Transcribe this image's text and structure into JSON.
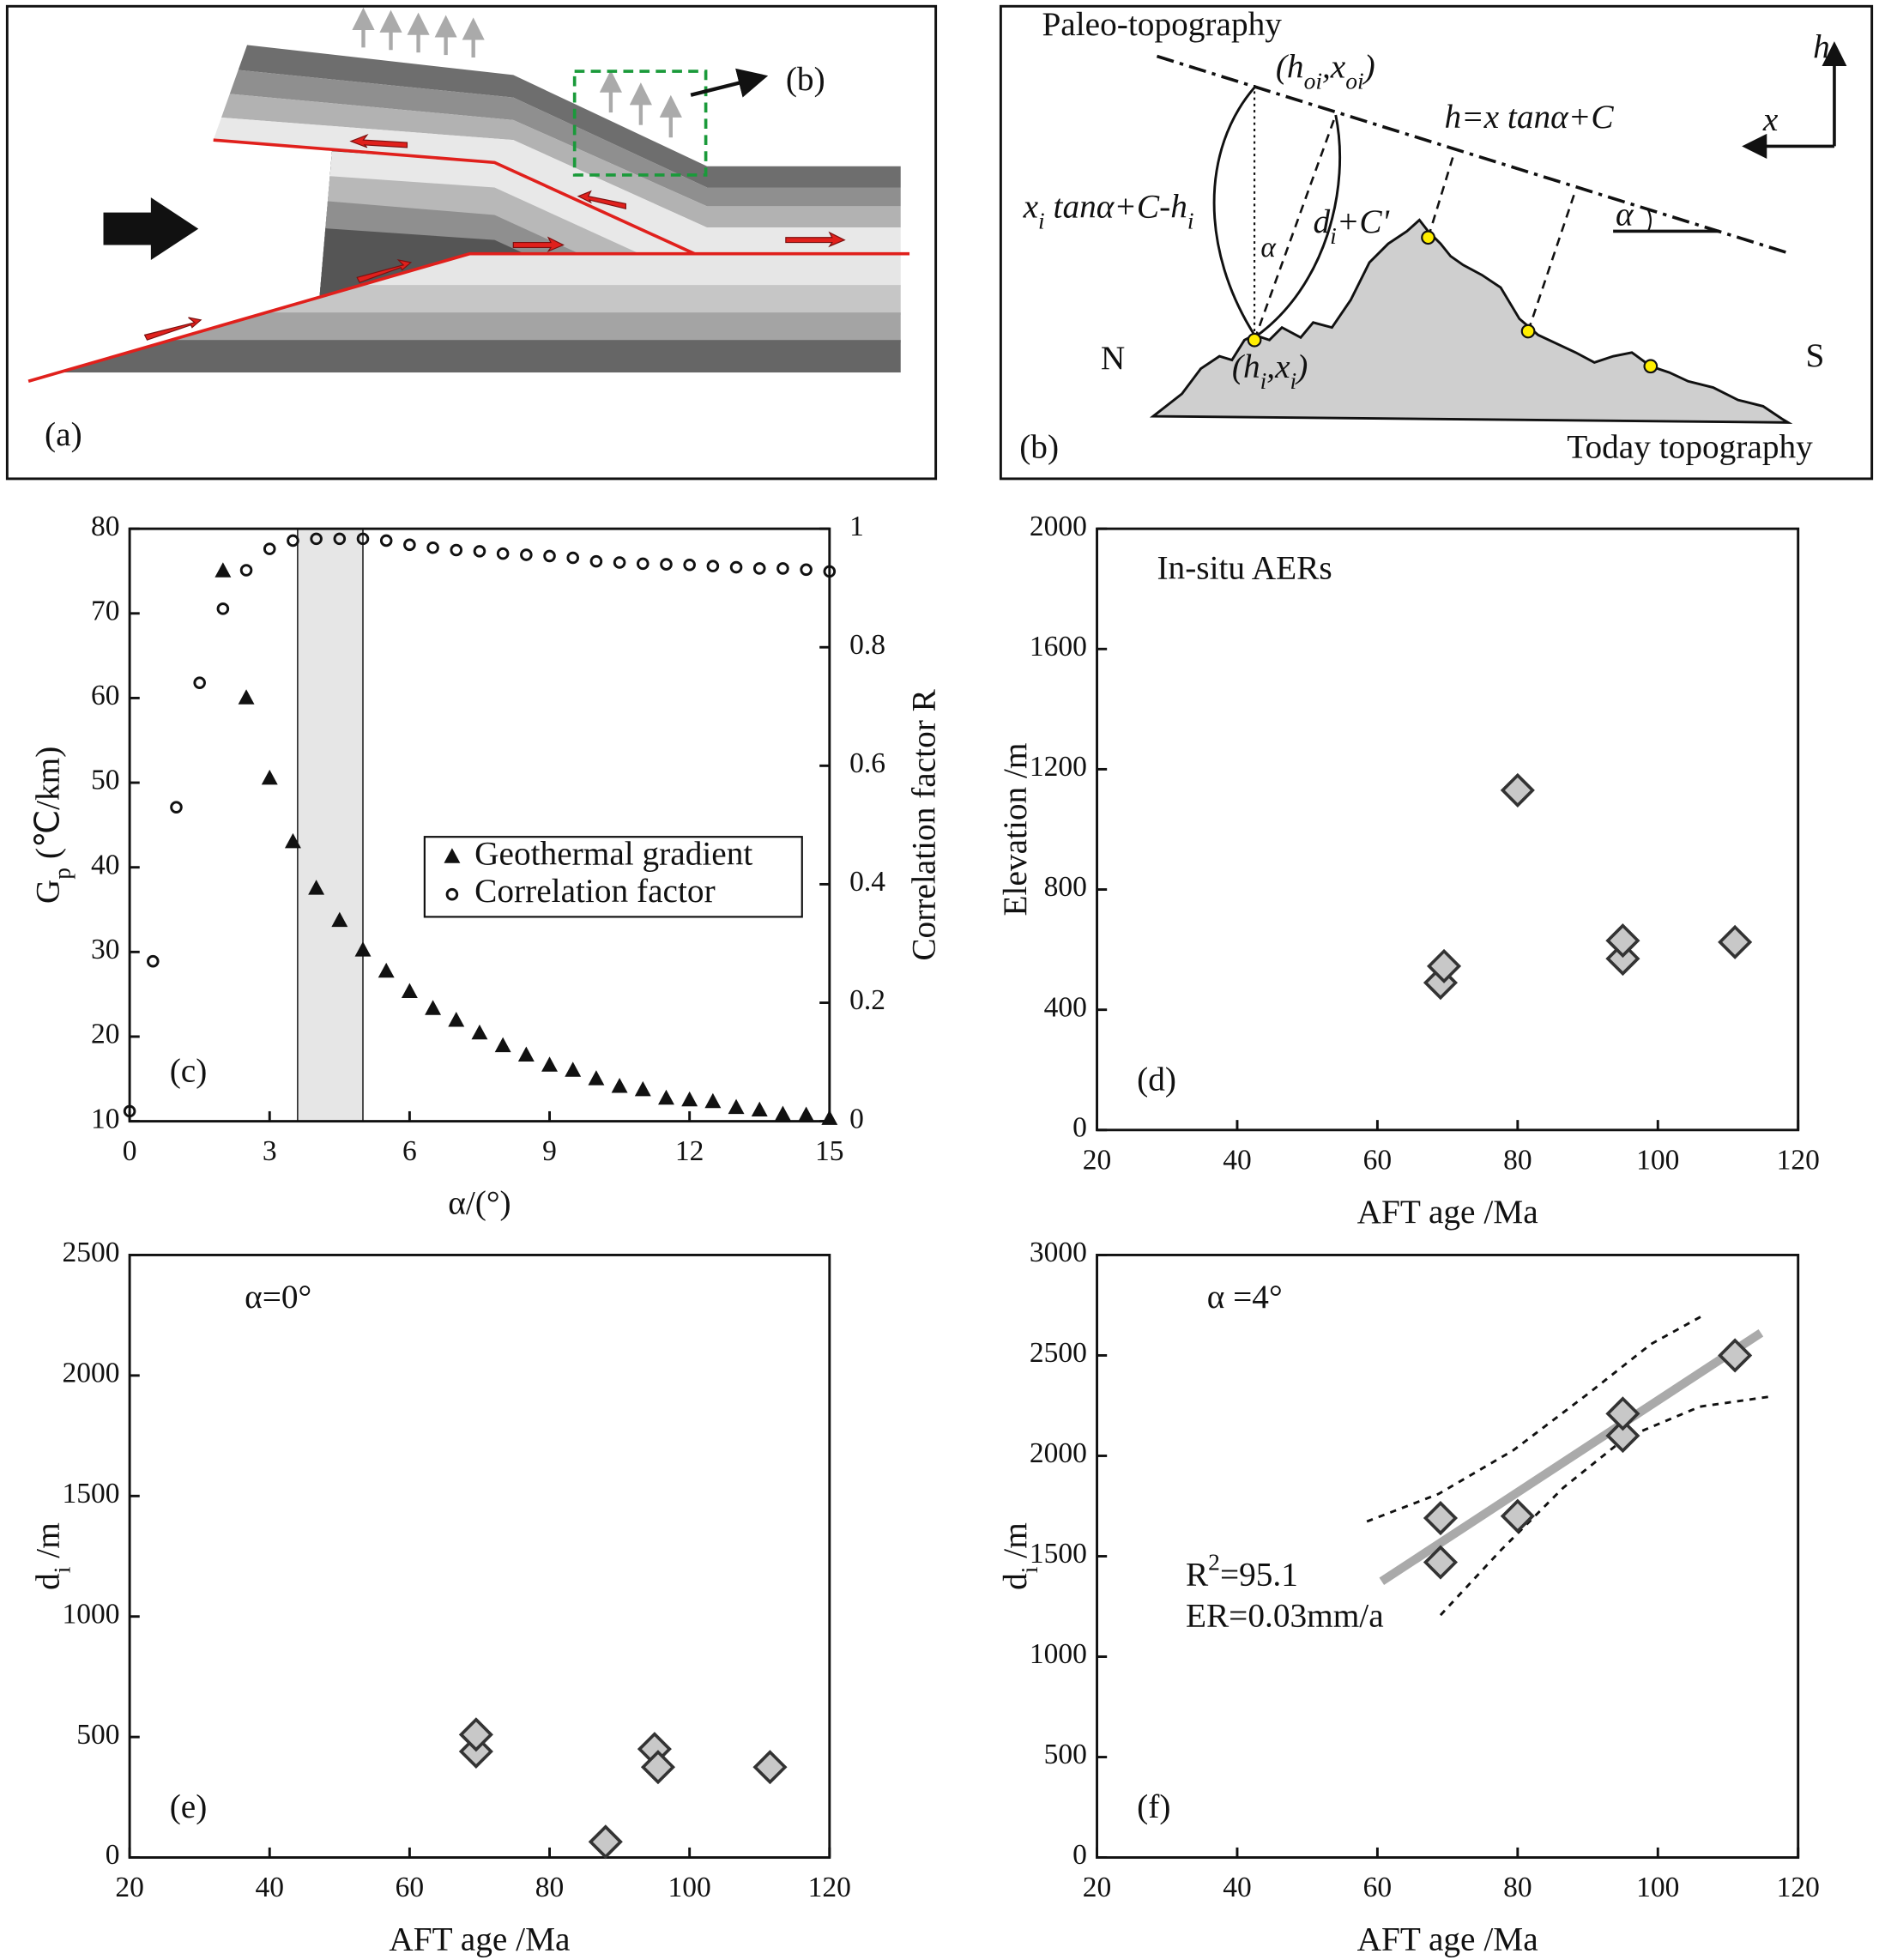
{
  "diagram_a": {
    "label": "(a)",
    "callout": "(b)"
  },
  "diagram_b": {
    "paleo_title": "Paleo-topography",
    "point_top": [
      "(h",
      "oi",
      ",x",
      "oi",
      ")"
    ],
    "equation": "h=x tanα+C",
    "left_expr": [
      "x",
      "i",
      " tanα+C-h",
      "i"
    ],
    "distance": [
      "d",
      "i",
      "+C'"
    ],
    "alpha_left": "α",
    "alpha_right": "α",
    "point_bottom": [
      "(h",
      "i",
      ",x",
      "i",
      ")"
    ],
    "north": "N",
    "south": "S",
    "today": "Today topography",
    "label": "(b)",
    "axis_h": "h",
    "axis_x": "x"
  },
  "chart_data": [
    {
      "type": "scatter",
      "label": "(c)",
      "xlabel": "α/(°)",
      "ylabel": [
        "G",
        "p",
        " (℃/km)"
      ],
      "y2label": "Correlation factor R",
      "xlim": [
        0,
        15
      ],
      "xticks": [
        0,
        3,
        6,
        9,
        12,
        15
      ],
      "ylim": [
        10,
        80
      ],
      "yticks": [
        10,
        20,
        30,
        40,
        50,
        60,
        70,
        80
      ],
      "y2lim": [
        0,
        1
      ],
      "y2ticks": [
        0,
        0.2,
        0.4,
        0.6,
        0.8,
        1
      ],
      "shaded_x": [
        3.6,
        5
      ],
      "legend": "center-right",
      "series": [
        {
          "name": "Geothermal gradient",
          "marker": "triangle",
          "color": "#111111",
          "x": [
            2,
            2.5,
            3,
            3.5,
            4,
            4.5,
            5,
            5.5,
            6,
            6.5,
            7,
            7.5,
            8,
            8.5,
            9,
            9.5,
            10,
            10.5,
            11,
            11.5,
            12,
            12.5,
            13,
            13.5,
            14,
            14.5,
            15
          ],
          "values": [
            75,
            60,
            50.5,
            43,
            37.5,
            33.7,
            30.2,
            27.7,
            25.3,
            23.3,
            21.9,
            20.4,
            18.9,
            17.8,
            16.6,
            16,
            15,
            14.1,
            13.7,
            12.7,
            12.5,
            12.3,
            11.6,
            11.3,
            10.8,
            10.7,
            10.3
          ]
        },
        {
          "name": "Correlation factor",
          "marker": "circle",
          "color": "#111111",
          "axis": "y2",
          "x": [
            0,
            0.5,
            1,
            1.5,
            2,
            2.5,
            3,
            3.5,
            4,
            4.5,
            5,
            5.5,
            6,
            6.5,
            7,
            7.5,
            8,
            8.5,
            9,
            9.5,
            10,
            10.5,
            11,
            11.5,
            12,
            12.5,
            13,
            13.5,
            14,
            14.5,
            15
          ],
          "values": [
            0.017,
            0.27,
            0.53,
            0.74,
            0.865,
            0.93,
            0.966,
            0.98,
            0.983,
            0.983,
            0.983,
            0.98,
            0.973,
            0.968,
            0.964,
            0.962,
            0.958,
            0.956,
            0.954,
            0.951,
            0.945,
            0.943,
            0.941,
            0.94,
            0.939,
            0.937,
            0.935,
            0.933,
            0.933,
            0.931,
            0.928
          ]
        }
      ]
    },
    {
      "type": "scatter",
      "label": "(d)",
      "xlabel": "AFT age /Ma",
      "ylabel": "Elevation /m",
      "annotations": [
        "In-situ AERs"
      ],
      "xlim": [
        20,
        120
      ],
      "xticks": [
        20,
        40,
        60,
        80,
        100,
        120
      ],
      "ylim": [
        0,
        2000
      ],
      "yticks": [
        0,
        400,
        800,
        1200,
        1600,
        2000
      ],
      "series": [
        {
          "marker": "diamond",
          "color": "#c8c8c8",
          "x": [
            69,
            69.5,
            80,
            95,
            95,
            111
          ],
          "values": [
            490,
            545,
            1130,
            570,
            630,
            625
          ]
        }
      ]
    },
    {
      "type": "scatter",
      "label": "(e)",
      "xlabel": "AFT age /Ma",
      "ylabel": [
        "d",
        "i",
        " /m"
      ],
      "annotations": [
        "α=0°"
      ],
      "xlim": [
        20,
        120
      ],
      "xticks": [
        20,
        40,
        60,
        80,
        100,
        120
      ],
      "ylim": [
        0,
        2500
      ],
      "yticks": [
        0,
        500,
        1000,
        1500,
        2000,
        2500
      ],
      "series": [
        {
          "marker": "diamond",
          "color": "#c8c8c8",
          "x": [
            69.5,
            69.5,
            88,
            95,
            95.5,
            111.5
          ],
          "values": [
            440,
            510,
            65,
            450,
            375,
            375
          ]
        }
      ]
    },
    {
      "type": "scatter",
      "label": "(f)",
      "xlabel": "AFT age /Ma",
      "ylabel": [
        "d",
        "i",
        " /m"
      ],
      "annotations": [
        "α =4°",
        [
          "R",
          "2",
          "=95.1"
        ],
        "ER=0.03mm/a"
      ],
      "xlim": [
        20,
        120
      ],
      "xticks": [
        20,
        40,
        60,
        80,
        100,
        120
      ],
      "ylim": [
        0,
        3000
      ],
      "yticks": [
        0,
        500,
        1000,
        1500,
        2000,
        2500,
        3000
      ],
      "lines": [
        {
          "style": "solid",
          "color": "#aaaaaa",
          "x": [
            60.6,
            114.7
          ],
          "values": [
            1375,
            2612
          ]
        },
        {
          "style": "dashed",
          "color": "#111111",
          "x": [
            58.5,
            68.7,
            79.4,
            90,
            99,
            106.5
          ],
          "values": [
            1673,
            1810,
            2028,
            2308,
            2556,
            2700
          ]
        },
        {
          "style": "dashed",
          "color": "#111111",
          "x": [
            69,
            77.6,
            86.5,
            95.4,
            106,
            116
          ],
          "values": [
            1207,
            1530,
            1841,
            2090,
            2245,
            2295
          ]
        }
      ],
      "series": [
        {
          "marker": "diamond",
          "color": "#c8c8c8",
          "x": [
            69,
            69,
            80,
            95,
            95,
            111
          ],
          "values": [
            1470,
            1690,
            1700,
            2100,
            2210,
            2500
          ]
        }
      ]
    }
  ]
}
